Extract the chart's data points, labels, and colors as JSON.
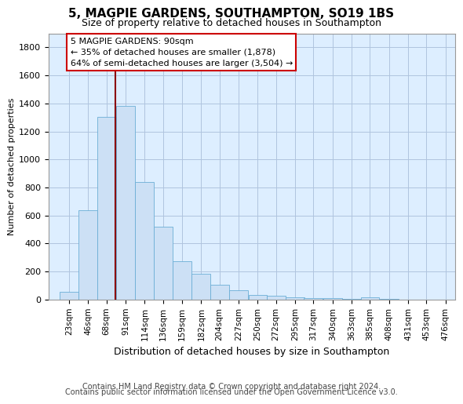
{
  "title": "5, MAGPIE GARDENS, SOUTHAMPTON, SO19 1BS",
  "subtitle": "Size of property relative to detached houses in Southampton",
  "xlabel": "Distribution of detached houses by size in Southampton",
  "ylabel": "Number of detached properties",
  "bar_color": "#cce0f5",
  "bar_edge_color": "#6baed6",
  "grid_color": "#b0c4de",
  "bg_color": "#ddeeff",
  "vline_color": "#8b0000",
  "vline_x": 90,
  "annotation_text": "5 MAGPIE GARDENS: 90sqm\n← 35% of detached houses are smaller (1,878)\n64% of semi-detached houses are larger (3,504) →",
  "annotation_box_color": "#ffffff",
  "annotation_box_edge": "#cc0000",
  "footer_line1": "Contains HM Land Registry data © Crown copyright and database right 2024.",
  "footer_line2": "Contains public sector information licensed under the Open Government Licence v3.0.",
  "categories": [
    "23sqm",
    "46sqm",
    "68sqm",
    "91sqm",
    "114sqm",
    "136sqm",
    "159sqm",
    "182sqm",
    "204sqm",
    "227sqm",
    "250sqm",
    "272sqm",
    "295sqm",
    "317sqm",
    "340sqm",
    "363sqm",
    "385sqm",
    "408sqm",
    "431sqm",
    "453sqm",
    "476sqm"
  ],
  "bin_left": [
    23,
    46,
    68,
    91,
    114,
    136,
    159,
    182,
    204,
    227,
    250,
    272,
    295,
    317,
    340,
    363,
    385,
    408,
    431,
    453,
    476
  ],
  "bin_width": 23,
  "values": [
    55,
    640,
    1305,
    1380,
    840,
    520,
    275,
    185,
    105,
    65,
    35,
    25,
    18,
    12,
    8,
    5,
    15,
    2,
    1,
    1,
    0
  ],
  "ylim": [
    0,
    1900
  ],
  "yticks": [
    0,
    200,
    400,
    600,
    800,
    1000,
    1200,
    1400,
    1600,
    1800
  ],
  "xlim_left": 10,
  "xlim_right": 499,
  "title_fontsize": 11,
  "subtitle_fontsize": 9,
  "ylabel_fontsize": 8,
  "xlabel_fontsize": 9,
  "tick_fontsize": 8,
  "annot_fontsize": 8,
  "footer_fontsize": 7
}
